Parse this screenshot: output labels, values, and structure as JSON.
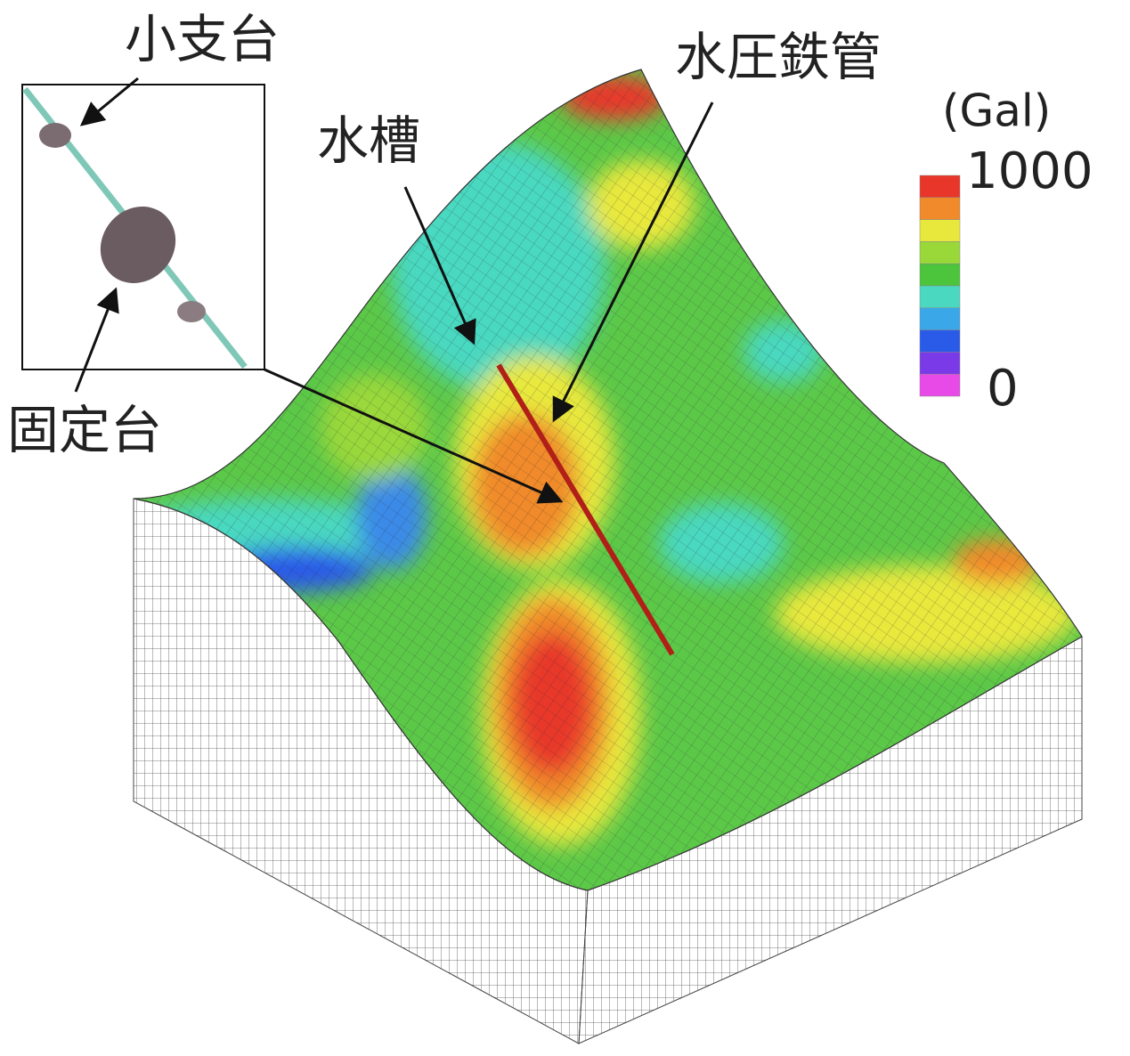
{
  "labels": {
    "small_support": "小支台",
    "fixed_support": "固定台",
    "water_tank": "水槽",
    "penstock": "水圧鉄管"
  },
  "colorbar": {
    "unit": "(Gal)",
    "max": 1000,
    "min": 0,
    "colors": [
      "#e8372a",
      "#f08a2a",
      "#e8e83c",
      "#9ad83a",
      "#4cc43c",
      "#4ad8c0",
      "#3aa8e8",
      "#2a5ae8",
      "#7a3ae8",
      "#e84ae8"
    ]
  }
}
